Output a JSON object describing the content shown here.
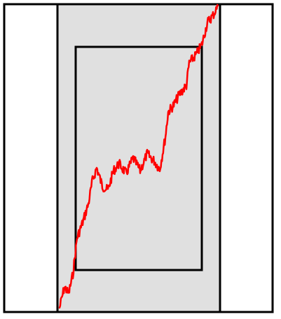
{
  "colors": {
    "background": "#ffffff",
    "band_fill": "#e0e0e0",
    "frame_stroke": "#000000",
    "trace_stroke": "#ff0000"
  }
}
